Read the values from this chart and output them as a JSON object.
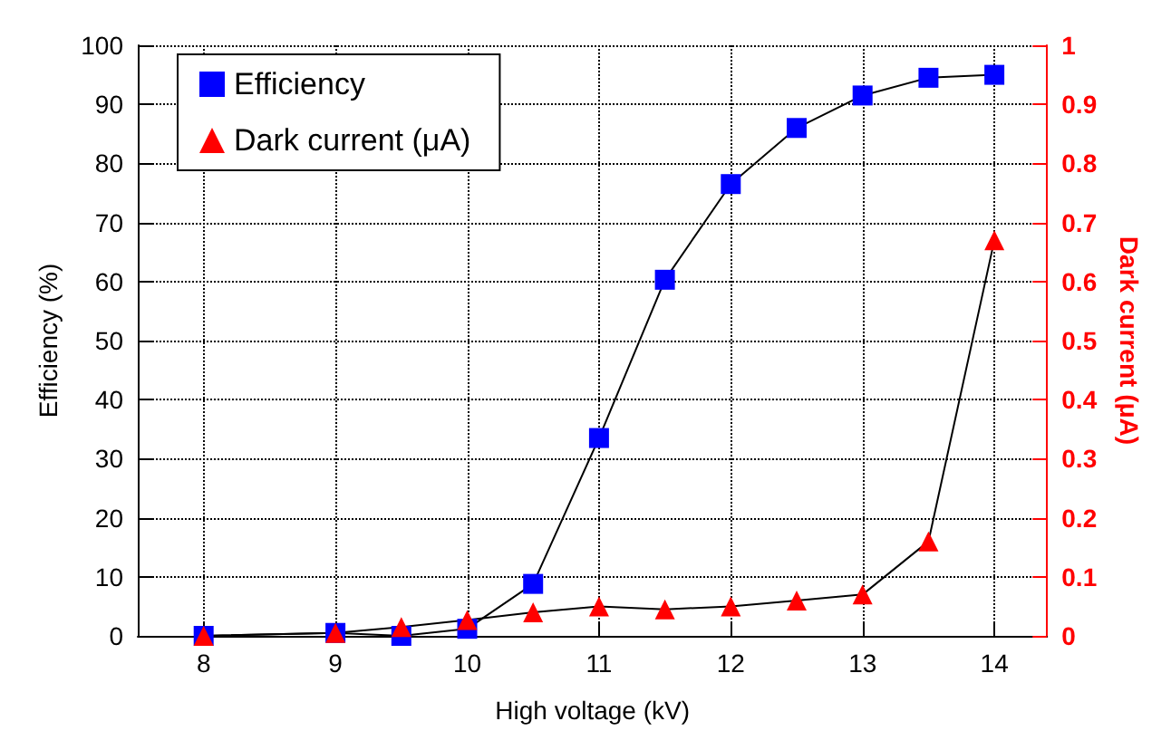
{
  "chart_data": {
    "type": "line",
    "xlabel": "High voltage (kV)",
    "ylabel": "Efficiency (%)",
    "y2label": "Dark current (μA)",
    "x": [
      8,
      9,
      9.5,
      10,
      10.5,
      11,
      11.5,
      12,
      12.5,
      13,
      13.5,
      14
    ],
    "series": [
      {
        "name": "Efficiency",
        "color": "#0000ff",
        "marker": "square",
        "values": [
          0,
          0.5,
          0,
          1.2,
          8.8,
          33.5,
          60.3,
          76.5,
          86,
          91.5,
          94.5,
          95
        ]
      },
      {
        "name": "Dark current (μA)",
        "color": "#ff0000",
        "marker": "triangle",
        "axis": "y2",
        "values": [
          0,
          0.005,
          0.015,
          0.027,
          0.04,
          0.05,
          0.045,
          0.05,
          0.06,
          0.07,
          0.16,
          0.67
        ]
      }
    ],
    "xlim": [
      7.5,
      14.4
    ],
    "xticks": [
      8,
      9,
      10,
      11,
      12,
      13,
      14
    ],
    "ylim": [
      0,
      100
    ],
    "yticks": [
      0,
      10,
      20,
      30,
      40,
      50,
      60,
      70,
      80,
      90,
      100
    ],
    "y2lim": [
      0,
      1
    ],
    "y2ticks": [
      0,
      0.1,
      0.2,
      0.3,
      0.4,
      0.5,
      0.6,
      0.7,
      0.8,
      0.9,
      1
    ],
    "grid": true,
    "legend": "top left",
    "line_style": "solid"
  }
}
